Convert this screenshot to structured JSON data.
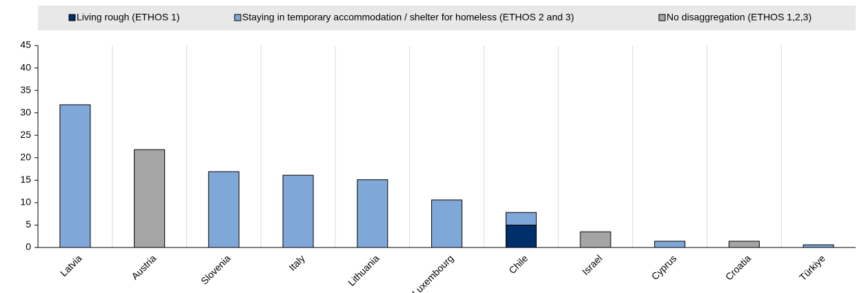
{
  "chart_data": {
    "type": "bar",
    "stacked": true,
    "categories": [
      "Latvia",
      "Austria",
      "Slovenia",
      "Italy",
      "Lithuania",
      "Luxembourg",
      "Chile",
      "Israel",
      "Cyprus",
      "Croatia",
      "Türkiye"
    ],
    "series": [
      {
        "name": "Living rough (ETHOS 1)",
        "color": "#002f6c",
        "values": [
          null,
          null,
          null,
          null,
          null,
          null,
          5.0,
          null,
          null,
          null,
          null
        ]
      },
      {
        "name": "Staying in temporary accommodation / shelter for homeless (ETHOS 2 and 3)",
        "color": "#7fa8d9",
        "values": [
          31.8,
          null,
          16.9,
          16.1,
          15.1,
          10.6,
          2.8,
          null,
          1.4,
          null,
          0.6
        ]
      },
      {
        "name": "No disaggregation (ETHOS 1,2,3)",
        "color": "#a5a5a5",
        "values": [
          null,
          21.8,
          null,
          null,
          null,
          null,
          null,
          3.5,
          null,
          1.4,
          null
        ]
      }
    ],
    "ylim": [
      0,
      45
    ],
    "yticks": [
      0,
      5,
      10,
      15,
      20,
      25,
      30,
      35,
      40,
      45
    ],
    "legend": "top"
  }
}
